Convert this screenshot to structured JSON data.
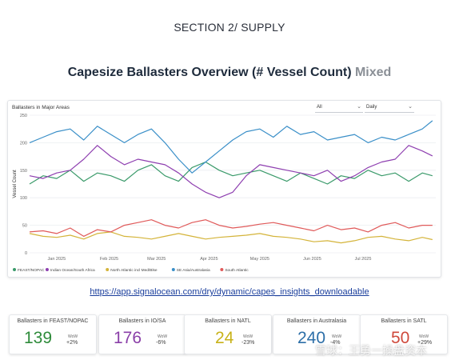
{
  "header": {
    "section": "SECTION 2/ SUPPLY",
    "title_main": "Capesize Ballasters Overview (# Vessel Count)",
    "title_suffix": "Mixed"
  },
  "controls": {
    "region_select": "All",
    "frequency_select": "Daily"
  },
  "link": "https://app.signalocean.com/dry/dynamic/capes_insights_downloadable",
  "kpis": [
    {
      "title": "Ballasters in FEAST/NOPAC",
      "value": "139",
      "unit": "WoW",
      "change": "+2%",
      "color": "#2e8b3a"
    },
    {
      "title": "Ballasters in IO/SA",
      "value": "176",
      "unit": "WoW",
      "change": "-6%",
      "color": "#8a3fa8"
    },
    {
      "title": "Ballasters in NATL",
      "value": "24",
      "unit": "WoW",
      "change": "-23%",
      "color": "#c8b219"
    },
    {
      "title": "Ballasters in Australasia",
      "value": "240",
      "unit": "WoW",
      "change": "-4%",
      "color": "#2d6fa8"
    },
    {
      "title": "Ballasters in SATL",
      "value": "50",
      "unit": "WoW",
      "change": "+29%",
      "color": "#cf4a3c"
    }
  ],
  "watermark": "雪球：王勇一操盘资本",
  "chart_data": {
    "type": "line",
    "title": "Ballasters in Major Areas",
    "ylabel": "Vessel Count",
    "xlabel": "",
    "ylim": [
      0,
      250
    ],
    "yticks": [
      0,
      50,
      100,
      150,
      200,
      250
    ],
    "x_range": [
      0,
      240
    ],
    "x_ticks": [
      {
        "x": 16,
        "label": "Jan 2025"
      },
      {
        "x": 47,
        "label": "Feb 2025"
      },
      {
        "x": 75,
        "label": "Mar 2025"
      },
      {
        "x": 106,
        "label": "Apr 2025"
      },
      {
        "x": 136,
        "label": "May 2025"
      },
      {
        "x": 167,
        "label": "Jun 2025"
      },
      {
        "x": 197,
        "label": "Jul 2025"
      }
    ],
    "grid": true,
    "legend_position": "bottom",
    "series": [
      {
        "name": "FEAST/NOPAC",
        "color": "#3a9a6a",
        "x": [
          0,
          8,
          16,
          24,
          32,
          40,
          48,
          56,
          64,
          72,
          80,
          88,
          96,
          104,
          112,
          120,
          128,
          136,
          144,
          152,
          160,
          168,
          176,
          184,
          192,
          200,
          208,
          216,
          224,
          232,
          238
        ],
        "y": [
          125,
          140,
          135,
          150,
          130,
          145,
          140,
          130,
          150,
          160,
          140,
          130,
          155,
          165,
          150,
          140,
          145,
          150,
          140,
          130,
          145,
          135,
          125,
          140,
          135,
          150,
          140,
          145,
          130,
          145,
          140
        ]
      },
      {
        "name": "Indian Ocean/South Africa",
        "color": "#8e3fb0",
        "x": [
          0,
          8,
          16,
          24,
          32,
          40,
          48,
          56,
          64,
          72,
          80,
          88,
          96,
          104,
          112,
          120,
          128,
          136,
          144,
          152,
          160,
          168,
          176,
          184,
          192,
          200,
          208,
          216,
          224,
          232,
          238
        ],
        "y": [
          140,
          135,
          145,
          150,
          170,
          195,
          175,
          160,
          170,
          165,
          160,
          145,
          125,
          110,
          100,
          110,
          140,
          160,
          155,
          150,
          145,
          140,
          150,
          130,
          140,
          155,
          165,
          170,
          195,
          185,
          176
        ]
      },
      {
        "name": "North Atlantic incl Med/Blse",
        "color": "#d4b43a",
        "x": [
          0,
          8,
          16,
          24,
          32,
          40,
          48,
          56,
          64,
          72,
          80,
          88,
          96,
          104,
          112,
          120,
          128,
          136,
          144,
          152,
          160,
          168,
          176,
          184,
          192,
          200,
          208,
          216,
          224,
          232,
          238
        ],
        "y": [
          35,
          30,
          28,
          32,
          25,
          35,
          38,
          30,
          28,
          25,
          30,
          35,
          30,
          25,
          28,
          30,
          32,
          35,
          30,
          28,
          25,
          20,
          22,
          18,
          22,
          28,
          30,
          25,
          22,
          28,
          24
        ]
      },
      {
        "name": "SE Asia/Australasia",
        "color": "#3a8fc8",
        "x": [
          0,
          8,
          16,
          24,
          32,
          40,
          48,
          56,
          64,
          72,
          80,
          88,
          96,
          104,
          112,
          120,
          128,
          136,
          144,
          152,
          160,
          168,
          176,
          184,
          192,
          200,
          208,
          216,
          224,
          232,
          238
        ],
        "y": [
          200,
          210,
          220,
          225,
          205,
          230,
          215,
          200,
          215,
          225,
          200,
          170,
          145,
          165,
          185,
          205,
          220,
          225,
          210,
          230,
          215,
          220,
          205,
          210,
          215,
          200,
          210,
          205,
          215,
          225,
          240
        ]
      },
      {
        "name": "South Atlantic",
        "color": "#e05a5a",
        "x": [
          0,
          8,
          16,
          24,
          32,
          40,
          48,
          56,
          64,
          72,
          80,
          88,
          96,
          104,
          112,
          120,
          128,
          136,
          144,
          152,
          160,
          168,
          176,
          184,
          192,
          200,
          208,
          216,
          224,
          232,
          238
        ],
        "y": [
          38,
          40,
          35,
          45,
          30,
          42,
          38,
          50,
          55,
          60,
          50,
          45,
          55,
          60,
          50,
          45,
          48,
          52,
          55,
          50,
          45,
          40,
          50,
          42,
          45,
          38,
          50,
          55,
          45,
          50,
          50
        ]
      }
    ]
  }
}
